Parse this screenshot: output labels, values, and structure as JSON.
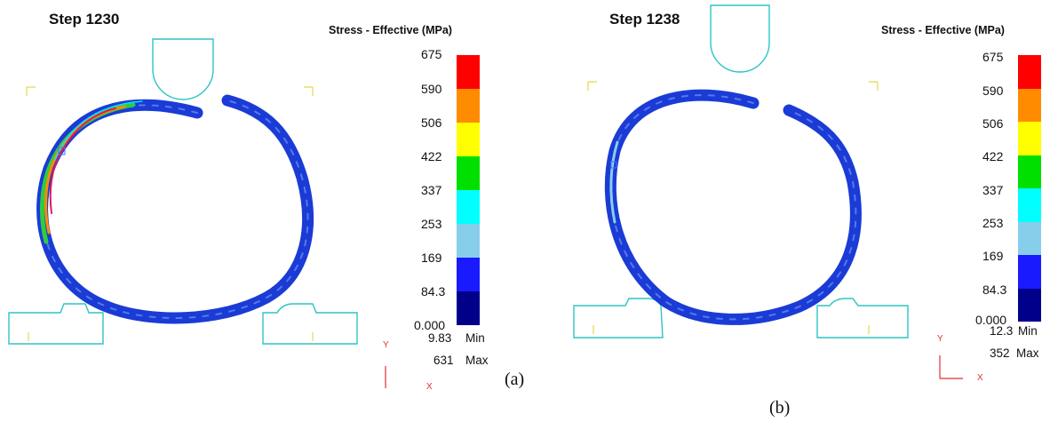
{
  "panels": [
    {
      "step": "Step 1230",
      "legend_title": "Stress - Effective (MPa)",
      "ticks": [
        "675",
        "590",
        "506",
        "422",
        "337",
        "253",
        "169",
        "84.3",
        "0.000"
      ],
      "min_value": "9.83",
      "min_label": "Min",
      "max_value": "631",
      "max_label": "Max",
      "axis_y": "Y",
      "axis_x": "X",
      "caption": "(a)"
    },
    {
      "step": "Step 1238",
      "legend_title": "Stress - Effective (MPa)",
      "ticks": [
        "675",
        "590",
        "506",
        "422",
        "337",
        "253",
        "169",
        "84.3",
        "0.000"
      ],
      "min_value": "12.3",
      "min_label": "Min",
      "max_value": "352",
      "max_label": "Max",
      "axis_y": "Y",
      "axis_x": "X",
      "caption": "(b)"
    }
  ],
  "colorbar_colors": [
    "#ff0000",
    "#ff8c00",
    "#ffff00",
    "#00e000",
    "#00ffff",
    "#87ceeb",
    "#1a1aff",
    "#00008b"
  ],
  "ring_color": "#1a3bd6",
  "tool_outline_color": "#2ec4c4"
}
